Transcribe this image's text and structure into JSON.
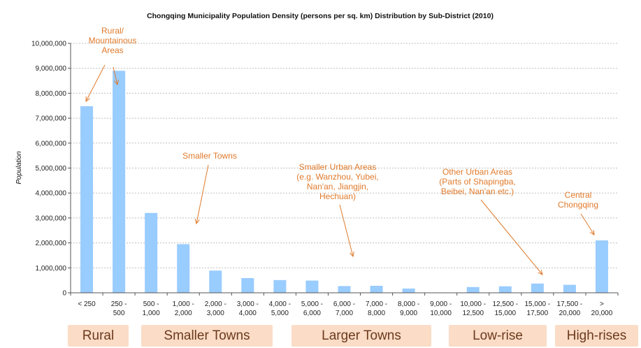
{
  "chart_data": {
    "type": "bar",
    "title": "Chongqing Municipality Population Density (persons per sq. km) Distribution by Sub-District (2010)",
    "xlabel": "",
    "ylabel": "Population",
    "ylim": [
      0,
      10000000
    ],
    "yticks": [
      "0",
      "1,000,000",
      "2,000,000",
      "3,000,000",
      "4,000,000",
      "5,000,000",
      "6,000,000",
      "7,000,000",
      "8,000,000",
      "9,000,000",
      "10,000,000"
    ],
    "categories": [
      [
        "< 250"
      ],
      [
        "250 -",
        "500"
      ],
      [
        "500 -",
        "1,000"
      ],
      [
        "1,000 -",
        "2,000"
      ],
      [
        "2,000 -",
        "3,000"
      ],
      [
        "3,000 -",
        "4,000"
      ],
      [
        "4,000 -",
        "5,000"
      ],
      [
        "5,000 -",
        "6,000"
      ],
      [
        "6,000 -",
        "7,000"
      ],
      [
        "7,000 -",
        "8,000"
      ],
      [
        "8,000 -",
        "9,000"
      ],
      [
        "9,000 -",
        "10,000"
      ],
      [
        "10,000 -",
        "12,500"
      ],
      [
        "12,500 -",
        "15,000"
      ],
      [
        "15,000 -",
        "17,500"
      ],
      [
        "17,500 -",
        "20,000"
      ],
      [
        ">",
        "20,000"
      ]
    ],
    "values": [
      7480000,
      8900000,
      3200000,
      1950000,
      890000,
      590000,
      510000,
      490000,
      270000,
      280000,
      170000,
      0,
      230000,
      260000,
      370000,
      320000,
      2100000
    ],
    "color": "#99ccff",
    "grid": true,
    "annotations": [
      {
        "lines": [
          "Rural/",
          "Mountainous",
          "Areas"
        ]
      },
      {
        "lines": [
          "Smaller Towns"
        ]
      },
      {
        "lines": [
          "Smaller Urban Areas",
          "(e.g. Wanzhou, Yubei,",
          "Nan'an, Jiangjin,",
          "Hechuan)"
        ]
      },
      {
        "lines": [
          "Other Urban Areas",
          "(Parts of Shapingba,",
          "Beibei, Nan'an etc.)"
        ]
      },
      {
        "lines": [
          "Central",
          "Chongqing"
        ]
      }
    ]
  },
  "bands": [
    {
      "label": "Rural"
    },
    {
      "label": "Smaller Towns"
    },
    {
      "label": "Larger Towns"
    },
    {
      "label": "Low-rise"
    },
    {
      "label": "High-rises"
    }
  ],
  "annotation_color": "#e07a2b",
  "band_color": "#fbdcc6"
}
